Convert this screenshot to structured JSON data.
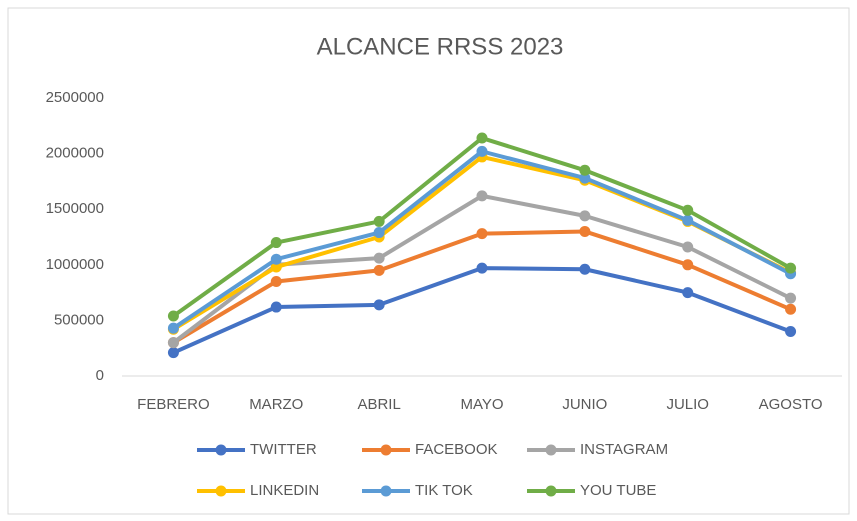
{
  "chart_data": {
    "type": "line",
    "title": "ALCANCE RRSS 2023",
    "categories": [
      "FEBRERO",
      "MARZO",
      "ABRIL",
      "MAYO",
      "JUNIO",
      "JULIO",
      "AGOSTO"
    ],
    "series": [
      {
        "name": "TWITTER",
        "color": "#4472c4",
        "values": [
          210000,
          620000,
          640000,
          970000,
          960000,
          750000,
          400000
        ]
      },
      {
        "name": "FACEBOOK",
        "color": "#ed7d31",
        "values": [
          300000,
          850000,
          950000,
          1280000,
          1300000,
          1000000,
          600000
        ]
      },
      {
        "name": "INSTAGRAM",
        "color": "#a5a5a5",
        "values": [
          300000,
          1000000,
          1060000,
          1620000,
          1440000,
          1160000,
          700000
        ]
      },
      {
        "name": "LINKEDIN",
        "color": "#ffc000",
        "values": [
          420000,
          980000,
          1250000,
          1970000,
          1760000,
          1390000,
          930000
        ]
      },
      {
        "name": "TIK TOK",
        "color": "#5b9bd5",
        "values": [
          430000,
          1050000,
          1290000,
          2020000,
          1780000,
          1400000,
          920000
        ]
      },
      {
        "name": "YOU TUBE",
        "color": "#70ad47",
        "values": [
          540000,
          1200000,
          1390000,
          2140000,
          1850000,
          1490000,
          970000
        ]
      }
    ],
    "ylim": [
      0,
      2500000
    ],
    "yticks": [
      0,
      500000,
      1000000,
      1500000,
      2000000,
      2500000
    ],
    "grid": false,
    "legend": "bottom"
  }
}
